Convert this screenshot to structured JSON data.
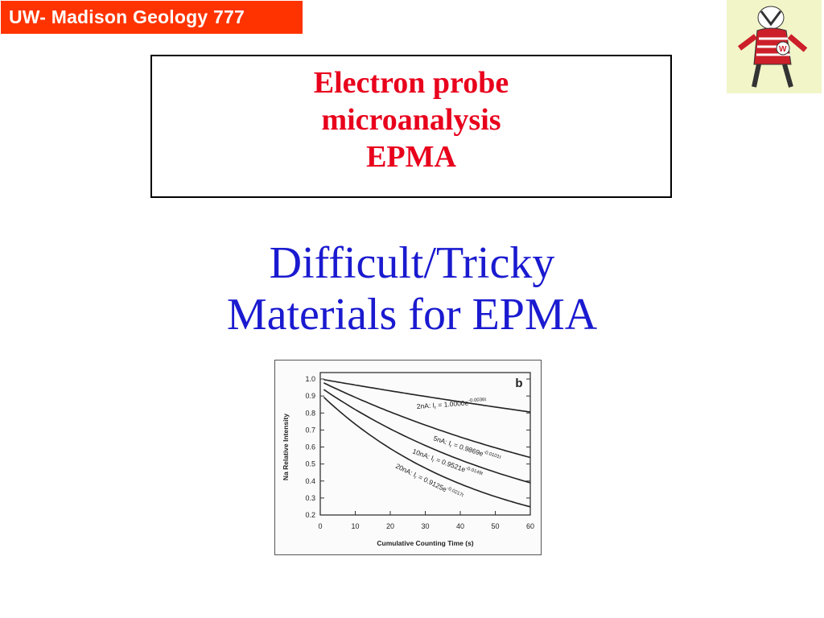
{
  "header": {
    "course_label": "UW- Madison Geology  777"
  },
  "logo": {
    "name": "badger-mascot-logo"
  },
  "title": {
    "lines": [
      "Electron probe",
      "microanalysis",
      "EPMA"
    ],
    "color": "#e8001c"
  },
  "subtitle": {
    "lines": [
      "Difficult/Tricky",
      "Materials for EPMA"
    ],
    "color": "#1a1ad0"
  },
  "chart_data": {
    "type": "line",
    "panel_label": "b",
    "xlabel": "Cumulative Counting Time (s)",
    "ylabel": "Na Relative Intensity",
    "xlim": [
      0,
      60
    ],
    "ylim": [
      0.2,
      1.0
    ],
    "xticks": [
      "0",
      "10",
      "20",
      "30",
      "40",
      "50",
      "60"
    ],
    "yticks": [
      "0.2",
      "0.3",
      "0.4",
      "0.5",
      "0.6",
      "0.7",
      "0.8",
      "0.9",
      "1.0"
    ],
    "grid": false,
    "series": [
      {
        "name": "2nA",
        "equation": "2nA: Ir = 1.0000e-0.0036t",
        "a": 1.0,
        "k": 0.0036
      },
      {
        "name": "5nA",
        "equation": "5nA: Ir = 0.9869e-0.0101t",
        "a": 0.9869,
        "k": 0.0101
      },
      {
        "name": "10nA",
        "equation": "10nA: Ir = 0.9521e-0.0149t",
        "a": 0.9521,
        "k": 0.0149
      },
      {
        "name": "20nA",
        "equation": "20nA: Ir = 0.9125e-0.0217t",
        "a": 0.9125,
        "k": 0.0217
      }
    ],
    "labels": [
      {
        "prefix": "2nA: I",
        "sub": "r",
        "mid": " = 1.0000e",
        "exp": "-0.0036t"
      },
      {
        "prefix": "5nA: I",
        "sub": "r",
        "mid": " = 0.9869e",
        "exp": "-0.0101t"
      },
      {
        "prefix": "10nA: I",
        "sub": "r",
        "mid": " = 0.9521e",
        "exp": "-0.0149t"
      },
      {
        "prefix": "20nA: I",
        "sub": "r",
        "mid": " = 0.9125e",
        "exp": "-0.0217t"
      }
    ]
  }
}
